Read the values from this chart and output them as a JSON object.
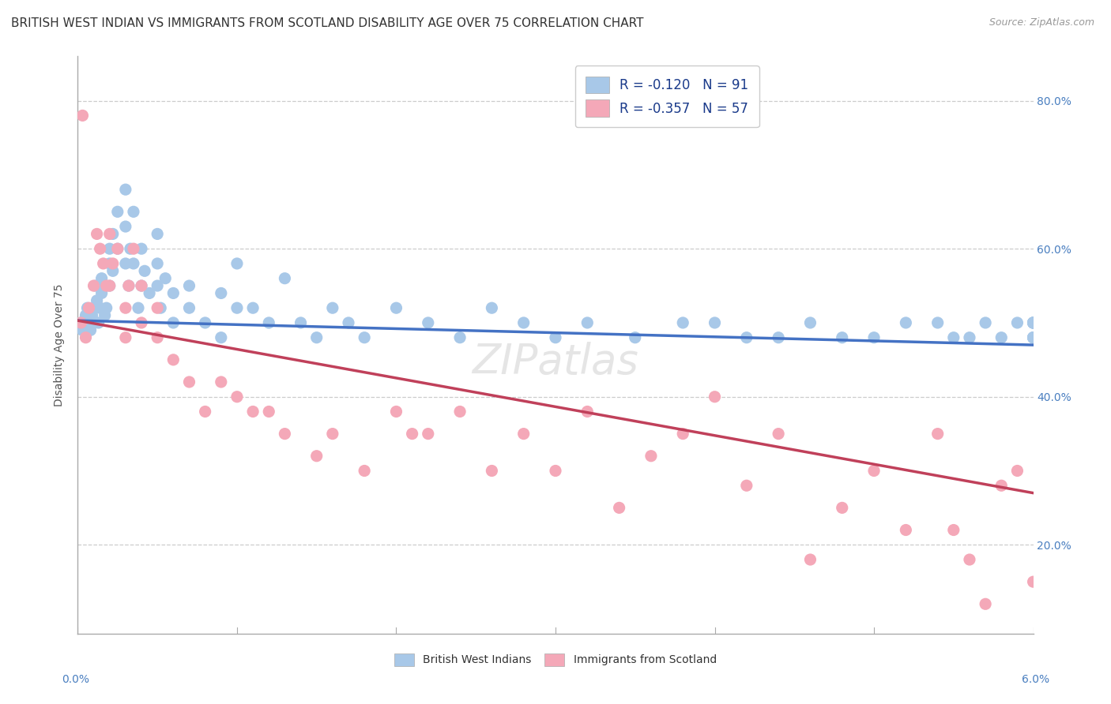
{
  "title": "BRITISH WEST INDIAN VS IMMIGRANTS FROM SCOTLAND DISABILITY AGE OVER 75 CORRELATION CHART",
  "source": "Source: ZipAtlas.com",
  "ylabel": "Disability Age Over 75",
  "xlim": [
    0.0,
    0.06
  ],
  "ylim": [
    0.08,
    0.86
  ],
  "yticks": [
    0.2,
    0.4,
    0.6,
    0.8
  ],
  "ytick_labels": [
    "20.0%",
    "40.0%",
    "60.0%",
    "80.0%"
  ],
  "blue_R": -0.12,
  "blue_N": 91,
  "pink_R": -0.357,
  "pink_N": 57,
  "blue_color": "#a8c8e8",
  "blue_line_color": "#4472c4",
  "pink_color": "#f4a8b8",
  "pink_line_color": "#c0405a",
  "background_color": "#ffffff",
  "grid_color": "#cccccc",
  "title_fontsize": 11,
  "ylabel_fontsize": 10,
  "tick_fontsize": 10,
  "legend_fontsize": 12,
  "blue_x": [
    0.0002,
    0.0003,
    0.0004,
    0.0005,
    0.0006,
    0.0007,
    0.0008,
    0.0009,
    0.001,
    0.001,
    0.0011,
    0.0012,
    0.0013,
    0.0014,
    0.0015,
    0.0015,
    0.0016,
    0.0017,
    0.0018,
    0.002,
    0.002,
    0.002,
    0.0022,
    0.0022,
    0.0025,
    0.0025,
    0.003,
    0.003,
    0.003,
    0.0032,
    0.0033,
    0.0035,
    0.0035,
    0.0038,
    0.004,
    0.004,
    0.0042,
    0.0045,
    0.005,
    0.005,
    0.005,
    0.0052,
    0.0055,
    0.006,
    0.006,
    0.007,
    0.007,
    0.008,
    0.009,
    0.009,
    0.01,
    0.01,
    0.011,
    0.012,
    0.013,
    0.014,
    0.015,
    0.016,
    0.017,
    0.018,
    0.02,
    0.022,
    0.024,
    0.026,
    0.028,
    0.03,
    0.032,
    0.035,
    0.038,
    0.04,
    0.042,
    0.044,
    0.046,
    0.048,
    0.05,
    0.052,
    0.054,
    0.055,
    0.056,
    0.057,
    0.058,
    0.059,
    0.06,
    0.06,
    0.06,
    0.06,
    0.06,
    0.06,
    0.06,
    0.06,
    0.06
  ],
  "blue_y": [
    0.5,
    0.49,
    0.5,
    0.51,
    0.52,
    0.5,
    0.49,
    0.51,
    0.5,
    0.52,
    0.55,
    0.53,
    0.5,
    0.52,
    0.56,
    0.54,
    0.55,
    0.51,
    0.52,
    0.6,
    0.58,
    0.55,
    0.62,
    0.57,
    0.65,
    0.6,
    0.68,
    0.63,
    0.58,
    0.55,
    0.6,
    0.65,
    0.58,
    0.52,
    0.6,
    0.55,
    0.57,
    0.54,
    0.58,
    0.62,
    0.55,
    0.52,
    0.56,
    0.5,
    0.54,
    0.55,
    0.52,
    0.5,
    0.54,
    0.48,
    0.52,
    0.58,
    0.52,
    0.5,
    0.56,
    0.5,
    0.48,
    0.52,
    0.5,
    0.48,
    0.52,
    0.5,
    0.48,
    0.52,
    0.5,
    0.48,
    0.5,
    0.48,
    0.5,
    0.5,
    0.48,
    0.48,
    0.5,
    0.48,
    0.48,
    0.5,
    0.5,
    0.48,
    0.48,
    0.5,
    0.48,
    0.5,
    0.5,
    0.48,
    0.5,
    0.48,
    0.5,
    0.5,
    0.48,
    0.5,
    0.48
  ],
  "pink_x": [
    0.0002,
    0.0003,
    0.0005,
    0.0007,
    0.001,
    0.0012,
    0.0014,
    0.0016,
    0.0018,
    0.002,
    0.002,
    0.0022,
    0.0025,
    0.003,
    0.003,
    0.0032,
    0.0035,
    0.004,
    0.004,
    0.005,
    0.005,
    0.006,
    0.007,
    0.008,
    0.009,
    0.01,
    0.011,
    0.012,
    0.013,
    0.015,
    0.016,
    0.018,
    0.02,
    0.021,
    0.022,
    0.024,
    0.026,
    0.028,
    0.03,
    0.032,
    0.034,
    0.036,
    0.038,
    0.04,
    0.042,
    0.044,
    0.046,
    0.048,
    0.05,
    0.052,
    0.054,
    0.055,
    0.056,
    0.057,
    0.058,
    0.059,
    0.06
  ],
  "pink_y": [
    0.5,
    0.78,
    0.48,
    0.52,
    0.55,
    0.62,
    0.6,
    0.58,
    0.55,
    0.62,
    0.55,
    0.58,
    0.6,
    0.52,
    0.48,
    0.55,
    0.6,
    0.55,
    0.5,
    0.52,
    0.48,
    0.45,
    0.42,
    0.38,
    0.42,
    0.4,
    0.38,
    0.38,
    0.35,
    0.32,
    0.35,
    0.3,
    0.38,
    0.35,
    0.35,
    0.38,
    0.3,
    0.35,
    0.3,
    0.38,
    0.25,
    0.32,
    0.35,
    0.4,
    0.28,
    0.35,
    0.18,
    0.25,
    0.3,
    0.22,
    0.35,
    0.22,
    0.18,
    0.12,
    0.28,
    0.3,
    0.15
  ]
}
